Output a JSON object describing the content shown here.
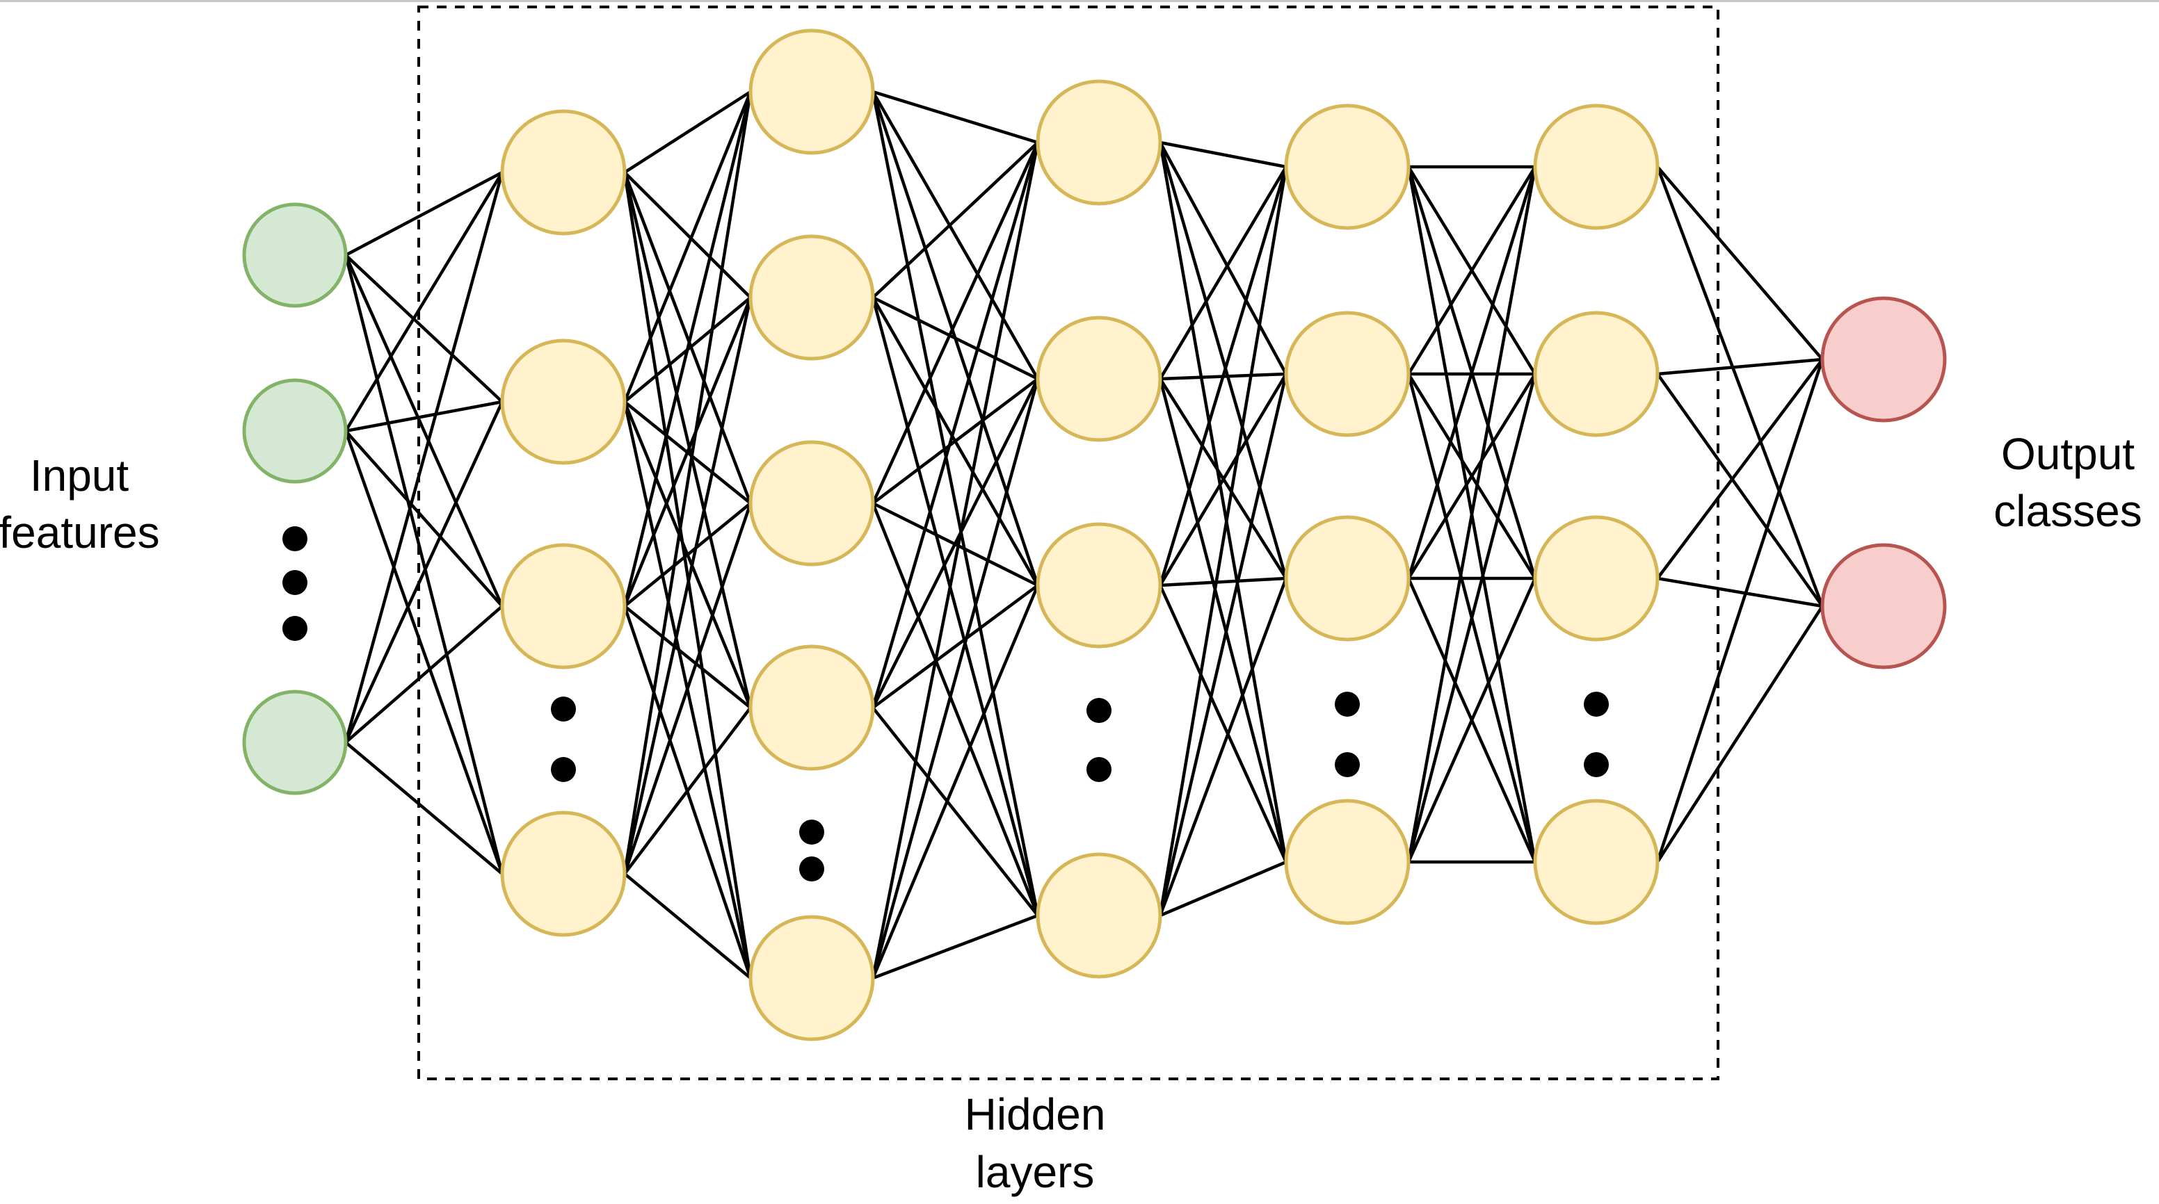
{
  "labels": {
    "input": [
      "Input",
      "features"
    ],
    "hidden": [
      "Hidden",
      "layers"
    ],
    "output": [
      "Output",
      "classes"
    ]
  },
  "colors": {
    "input_fill": "#d5e8d4",
    "input_stroke": "#82b366",
    "hidden_fill": "#fff2cc",
    "hidden_stroke": "#d6b656",
    "output_fill": "#f8cecc",
    "output_stroke": "#b85450",
    "edge": "#000000"
  },
  "network": {
    "layers": [
      {
        "name": "input",
        "role": "input",
        "visible_nodes": 3,
        "ellipsis": true
      },
      {
        "name": "hidden-1",
        "role": "hidden",
        "visible_nodes": 4,
        "ellipsis": true
      },
      {
        "name": "hidden-2",
        "role": "hidden",
        "visible_nodes": 5,
        "ellipsis": true
      },
      {
        "name": "hidden-3",
        "role": "hidden",
        "visible_nodes": 4,
        "ellipsis": true
      },
      {
        "name": "hidden-4",
        "role": "hidden",
        "visible_nodes": 4,
        "ellipsis": true
      },
      {
        "name": "hidden-5",
        "role": "hidden",
        "visible_nodes": 4,
        "ellipsis": true
      },
      {
        "name": "output",
        "role": "output",
        "visible_nodes": 2,
        "ellipsis": false
      }
    ],
    "connectivity": "fully-connected"
  }
}
